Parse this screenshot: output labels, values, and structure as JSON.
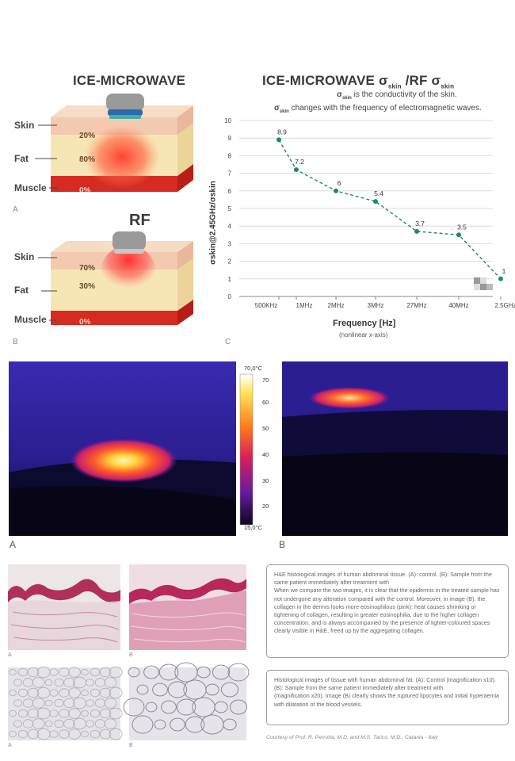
{
  "top_left": {
    "title": "ICE-MICROWAVE",
    "rf_title": "RF",
    "diagram_a": {
      "labels": [
        "Skin",
        "Fat",
        "Muscle"
      ],
      "percents": [
        "20%",
        "80%",
        "0%"
      ],
      "panel_letter": "A"
    },
    "diagram_b": {
      "labels": [
        "Skin",
        "Fat",
        "Muscle"
      ],
      "percents": [
        "70%",
        "30%",
        "0%"
      ],
      "panel_letter": "B"
    }
  },
  "chart": {
    "title_main": "ICE-MICROWAVE",
    "title_sigma1": "σ",
    "title_sub1": "skin",
    "title_mid": " /RF ",
    "title_sigma2": "σ",
    "title_sub2": "skin",
    "subtitle1_sigma": "σ",
    "subtitle1_sub": "skin",
    "subtitle1_text": " is the conductivity of the skin.",
    "subtitle2_sigma": "σ",
    "subtitle2_sub": "skin",
    "subtitle2_text": " changes with the frequency of electromagnetic waves.",
    "xlabel": "Frequency [Hz]",
    "xlabel_note": "(nonlinear x-axis)",
    "ylabel": "σskin@2.45GHz/σskin",
    "panel_letter": "C"
  },
  "chart_data": {
    "type": "line",
    "categories": [
      "500KHz",
      "1MHz",
      "2MHz",
      "3MHz",
      "27MHz",
      "40MHz",
      "2.5GHz"
    ],
    "values": [
      8.9,
      7.2,
      6,
      5.4,
      3.7,
      3.5,
      1
    ],
    "data_labels": [
      "8.9",
      "7.2",
      "6",
      "5.4",
      "3.7",
      "3.5",
      "1"
    ],
    "ylim": [
      0,
      10
    ],
    "yticks": [
      "0",
      "1",
      "2",
      "3",
      "4",
      "5",
      "6",
      "7",
      "8",
      "9",
      "10"
    ],
    "grid": true,
    "line_style": "dashed",
    "color": "#1f8a6a"
  },
  "thermal": {
    "colorbar_top": "70,0°C",
    "colorbar_bottom": "15,0°C",
    "colorbar_ticks": [
      "70",
      "60",
      "50",
      "40",
      "30",
      "20"
    ],
    "panel_a": "A",
    "panel_b": "B"
  },
  "histology": {
    "letters": [
      "A",
      "B",
      "A",
      "B"
    ],
    "box1": "H&E histological images of human abdominal tissue. (A): control. (B): Sample from the same patient immediately after treatment with\nWhen we compare the two images, it is clear that the epidermis in the treated sample has not undergone any alteration compared with the control. Moreover, in image (B), the collagen in the dermis looks more eosinophilous (pink): heat causes shrinking or tightening of collagen, resulting in greater eosinophilia, due to the higher collagen concentration, and is always accompanied by the presence of lighter-coloured spaces clearly visible in H&E, freed up by the aggregating collagen.",
    "box2": "Histological images of tissue with human abdominal fat. (A): Control (magnification x10). (B): Sample from the same patient immediately after treatment with                         (magnification x20). Image (B) clearly shows the ruptured lipocytes and initial hyperaemia with dilatation of the blood vessels.",
    "credit": "Courtesy of Prof. R. Perrotta, M.D. and M.S. Tarico, M.D., Catania - Italy"
  }
}
